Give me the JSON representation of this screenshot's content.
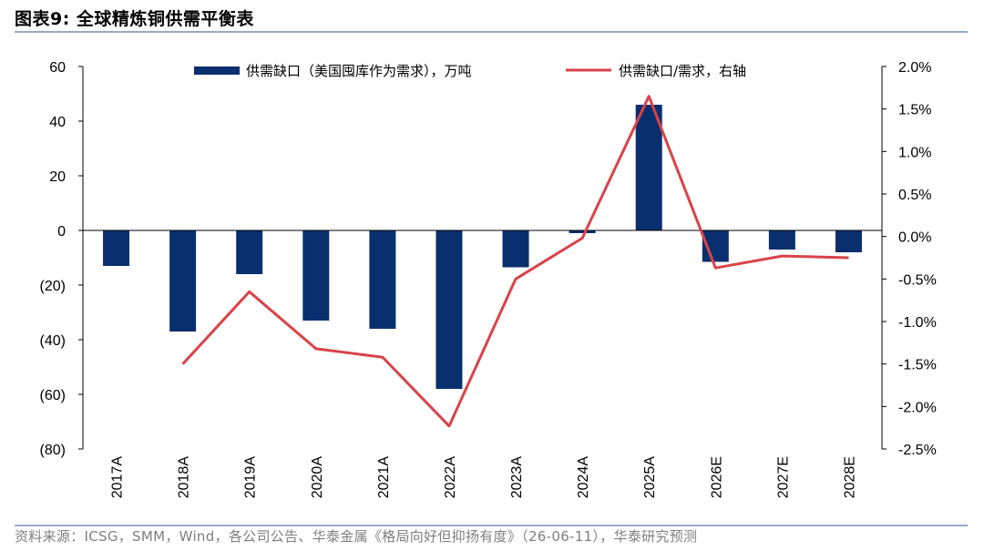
{
  "figure_title": "图表9:  全球精炼铜供需平衡表",
  "source": "资料来源：ICSG，SMM，Wind，各公司公告、华泰金属《格局向好但抑扬有度》（26-06-11），华泰研究预测",
  "colors": {
    "bar": "#0a2f6e",
    "line": "#d9434a",
    "axis": "#000000",
    "rule": "#9aa9c7"
  },
  "chart_data": {
    "type": "bar+line",
    "categories": [
      "2017A",
      "2018A",
      "2019A",
      "2020A",
      "2021A",
      "2022A",
      "2023A",
      "2024A",
      "2025A",
      "2026E",
      "2027E",
      "2028E"
    ],
    "series": [
      {
        "name": "供需缺口（美国囤库作为需求），万吨",
        "type": "bar",
        "axis": "left",
        "values": [
          -13,
          -37,
          -16,
          -33,
          -36,
          -58,
          -13.5,
          -1,
          46,
          -11.5,
          -7,
          -8
        ]
      },
      {
        "name": "供需缺口/需求，右轴",
        "type": "line",
        "axis": "right",
        "values": [
          null,
          -1.5,
          -0.65,
          -1.32,
          -1.42,
          -2.23,
          -0.5,
          -0.02,
          1.65,
          -0.37,
          -0.23,
          -0.25
        ]
      }
    ],
    "left_axis": {
      "min": -80,
      "max": 60,
      "ticks": [
        "60",
        "40",
        "20",
        "0",
        "(20)",
        "(40)",
        "(60)",
        "(80)"
      ]
    },
    "right_axis": {
      "min": -2.5,
      "max": 2.0,
      "ticks": [
        "2.0%",
        "1.5%",
        "1.0%",
        "0.5%",
        "0.0%",
        "-0.5%",
        "-1.0%",
        "-1.5%",
        "-2.0%",
        "-2.5%"
      ]
    },
    "grid": false,
    "legend_position": "top"
  }
}
